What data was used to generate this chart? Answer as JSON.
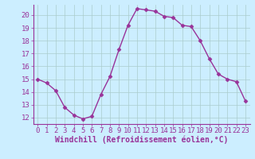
{
  "x": [
    0,
    1,
    2,
    3,
    4,
    5,
    6,
    7,
    8,
    9,
    10,
    11,
    12,
    13,
    14,
    15,
    16,
    17,
    18,
    19,
    20,
    21,
    22,
    23
  ],
  "y": [
    15.0,
    14.7,
    14.1,
    12.8,
    12.2,
    11.9,
    12.1,
    13.8,
    15.2,
    17.3,
    19.2,
    20.5,
    20.4,
    20.3,
    19.9,
    19.8,
    19.2,
    19.1,
    18.0,
    16.6,
    15.4,
    15.0,
    14.8,
    13.3
  ],
  "line_color": "#993399",
  "marker": "D",
  "marker_size": 2.5,
  "line_width": 1.0,
  "xlabel": "Windchill (Refroidissement éolien,°C)",
  "xlim": [
    -0.5,
    23.5
  ],
  "ylim": [
    11.5,
    20.8
  ],
  "yticks": [
    12,
    13,
    14,
    15,
    16,
    17,
    18,
    19,
    20
  ],
  "xticks": [
    0,
    1,
    2,
    3,
    4,
    5,
    6,
    7,
    8,
    9,
    10,
    11,
    12,
    13,
    14,
    15,
    16,
    17,
    18,
    19,
    20,
    21,
    22,
    23
  ],
  "bg_color": "#cceeff",
  "grid_color": "#aacccc",
  "tick_label_fontsize": 6.5,
  "xlabel_fontsize": 7.0,
  "xlabel_fontweight": "bold"
}
